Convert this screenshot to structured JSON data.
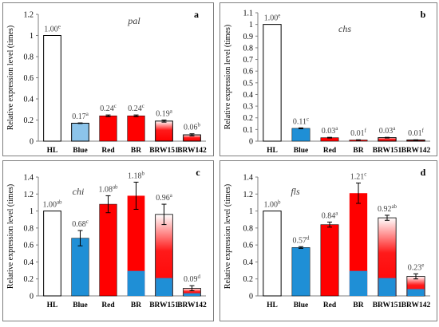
{
  "colors": {
    "white": "#ffffff",
    "blue": "#1f8fd6",
    "light_blue": "#8cc4ea",
    "red": "#ff0000",
    "gradient_red": "#ff1a1a",
    "axis": "#7f7f7f",
    "text": "#404040"
  },
  "chart_data": [
    {
      "type": "bar",
      "panel_letter": "a",
      "title": "pal",
      "ylabel": "Relative expression level (times)",
      "categories": [
        "HL",
        "Blue",
        "Red",
        "BR",
        "BRW151",
        "BRW142"
      ],
      "values": [
        1.0,
        0.17,
        0.24,
        0.24,
        0.19,
        0.06
      ],
      "errors": [
        0,
        0.003,
        0.008,
        0.008,
        0.01,
        0.01
      ],
      "value_labels": [
        "1.00",
        "0.17",
        "0.24",
        "0.24",
        "0.19",
        "0.06"
      ],
      "letters": [
        "e",
        "a",
        "c",
        "c",
        "a",
        "b"
      ],
      "fills": [
        "white",
        "light_blue",
        "red",
        "red",
        "gradient",
        "gradient"
      ],
      "ylim": [
        0,
        1.2
      ],
      "yticks": [
        0,
        0.2,
        0.4,
        0.6,
        0.8,
        1,
        1.2
      ],
      "ytick_labels": [
        "0",
        "0.2",
        "0.4",
        "0.6",
        "0.8",
        "1",
        "1.2"
      ],
      "grid": false
    },
    {
      "type": "bar",
      "panel_letter": "b",
      "title": "chs",
      "ylabel": "Relative expression level (times)",
      "categories": [
        "HL",
        "Blue",
        "Red",
        "BR",
        "BRW151",
        "BRW142"
      ],
      "values": [
        1.0,
        0.11,
        0.03,
        0.01,
        0.03,
        0.01
      ],
      "errors": [
        0,
        0.004,
        0.003,
        0.002,
        0.003,
        0.002
      ],
      "value_labels": [
        "1.00",
        "0.11",
        "0.03",
        "0.01",
        "0.03",
        "0.01"
      ],
      "letters": [
        "e",
        "c",
        "a",
        "f",
        "a",
        "f"
      ],
      "fills": [
        "white",
        "blue",
        "red",
        "red",
        "gradient",
        "gradient"
      ],
      "ylim": [
        0,
        1.1
      ],
      "yticks": [
        0,
        0.1,
        0.2,
        0.3,
        0.4,
        0.5,
        0.6,
        0.7,
        0.8,
        0.9,
        1,
        1.1
      ],
      "ytick_labels": [
        "0",
        "0.1",
        "0.2",
        "0.3",
        "0.4",
        "0.5",
        "0.6",
        "0.7",
        "0.8",
        "0.9",
        "1",
        "1.1"
      ],
      "grid": false
    },
    {
      "type": "bar",
      "panel_letter": "c",
      "title": "chi",
      "ylabel": "Relative expression level (times)",
      "categories": [
        "HL",
        "Blue",
        "Red",
        "BR",
        "BRW151",
        "BRW142"
      ],
      "values": [
        1.0,
        0.68,
        1.08,
        1.18,
        0.96,
        0.09
      ],
      "errors": [
        0,
        0.09,
        0.1,
        0.16,
        0.12,
        0.03
      ],
      "value_labels": [
        "1.00",
        "0.68",
        "1.08",
        "1.18",
        "0.96",
        "0.09"
      ],
      "letters": [
        "ab",
        "c",
        "ab",
        "b",
        "a",
        "d"
      ],
      "fills": [
        "white",
        "blue",
        "red",
        "red_blue_base",
        "gradient_blue_base",
        "gradient_blue_base"
      ],
      "ylim": [
        0,
        1.4
      ],
      "yticks": [
        0,
        0.2,
        0.4,
        0.6,
        0.8,
        1,
        1.2,
        1.4
      ],
      "ytick_labels": [
        "0",
        "0.2",
        "0.4",
        "0.6",
        "0.8",
        "1",
        "1.2",
        "1.4"
      ],
      "grid": false
    },
    {
      "type": "bar",
      "panel_letter": "d",
      "title": "fls",
      "ylabel": "Relative expression level (times)",
      "categories": [
        "HL",
        "Blue",
        "Red",
        "BR",
        "BRW151",
        "BRW142"
      ],
      "values": [
        1.0,
        0.57,
        0.84,
        1.21,
        0.92,
        0.23
      ],
      "errors": [
        0,
        0.01,
        0.03,
        0.12,
        0.03,
        0.03
      ],
      "value_labels": [
        "1.00",
        "0.57",
        "0.84",
        "1.21",
        "0.92",
        "0.23"
      ],
      "letters": [
        "b",
        "d",
        "a",
        "c",
        "ab",
        "e"
      ],
      "fills": [
        "white",
        "blue",
        "red",
        "red_blue_base",
        "gradient_blue_base",
        "gradient_blue_base"
      ],
      "ylim": [
        0,
        1.4
      ],
      "yticks": [
        0,
        0.2,
        0.4,
        0.6,
        0.8,
        1,
        1.2,
        1.4
      ],
      "ytick_labels": [
        "0",
        "0.2",
        "0.4",
        "0.6",
        "0.8",
        "1",
        "1.2",
        "1.4"
      ],
      "grid": false
    }
  ]
}
